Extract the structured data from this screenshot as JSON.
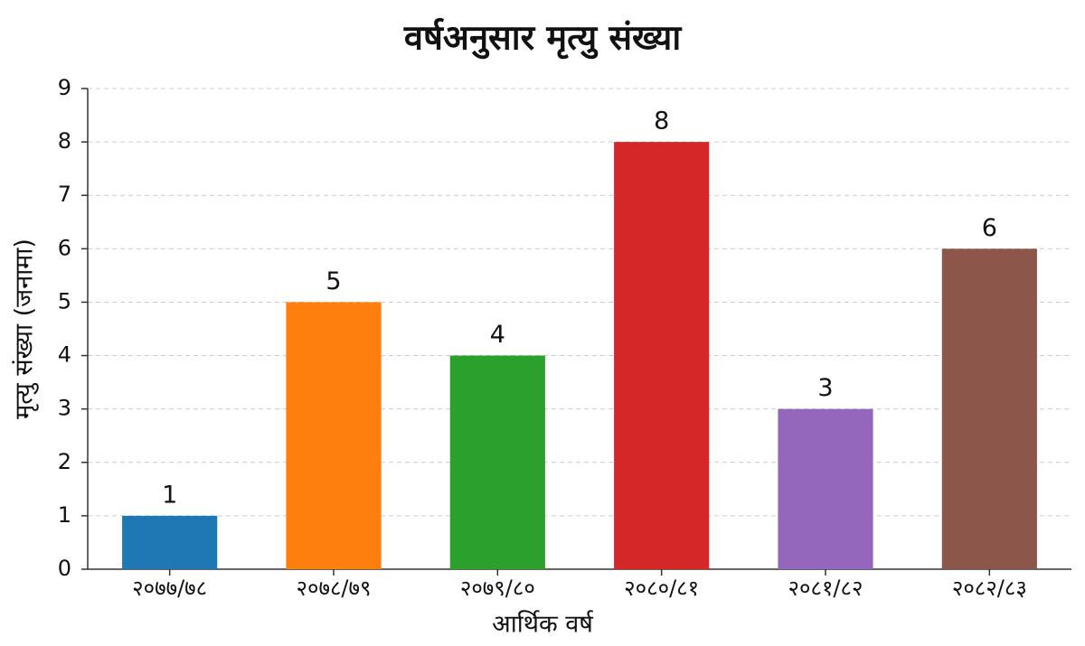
{
  "chart_data": {
    "type": "bar",
    "title": "वर्षअनुसार मृत्यु संख्या",
    "x_label": "आर्थिक वर्ष",
    "y_label": "मृत्यु संख्या (जनामा)",
    "categories": [
      "२०७७/७८",
      "२०७८/७९",
      "२०७९/८०",
      "२०८०/८१",
      "२०८१/८२",
      "२०८२/८३"
    ],
    "values": [
      1,
      5,
      4,
      8,
      3,
      6
    ],
    "colors": [
      "#1f77b4",
      "#ff7f0e",
      "#2ca02c",
      "#d62728",
      "#9467bd",
      "#8c564b"
    ],
    "ylim": [
      0,
      9
    ],
    "yticks": [
      0,
      1,
      2,
      3,
      4,
      5,
      6,
      7,
      8,
      9
    ],
    "grid": true
  }
}
